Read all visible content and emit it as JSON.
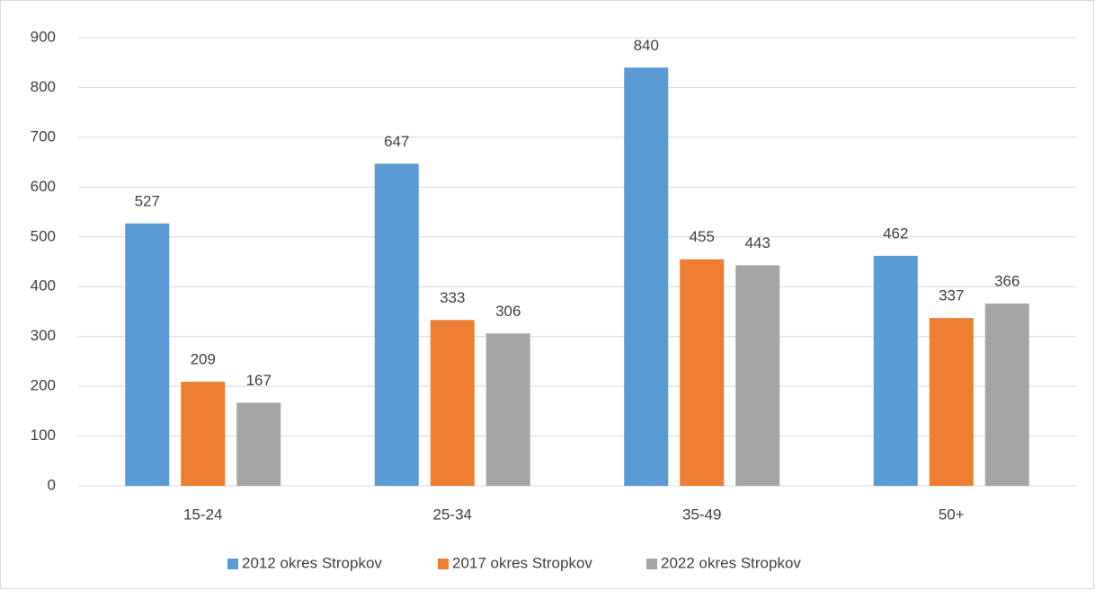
{
  "chart_data": {
    "type": "bar",
    "categories": [
      "15-24",
      "25-34",
      "35-49",
      "50+"
    ],
    "series": [
      {
        "name": "2012 okres Stropkov",
        "color": "#5b9bd5",
        "values": [
          527,
          647,
          840,
          462
        ]
      },
      {
        "name": "2017 okres Stropkov",
        "color": "#ed7d31",
        "values": [
          209,
          333,
          455,
          337
        ]
      },
      {
        "name": "2022 okres Stropkov",
        "color": "#a5a5a5",
        "values": [
          167,
          306,
          443,
          366
        ]
      }
    ],
    "ylim": [
      0,
      900
    ],
    "yticks": [
      0,
      100,
      200,
      300,
      400,
      500,
      600,
      700,
      800,
      900
    ],
    "grid": true,
    "legend": "bottom"
  }
}
